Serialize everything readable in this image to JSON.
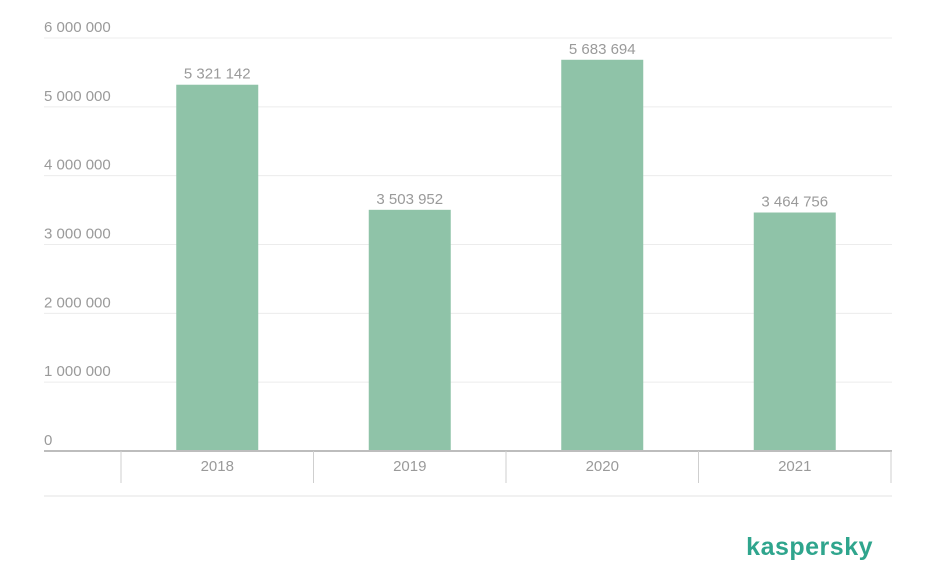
{
  "chart_data": {
    "type": "bar",
    "categories": [
      "2018",
      "2019",
      "2020",
      "2021"
    ],
    "values": [
      5321142,
      3503952,
      5683694,
      3464756
    ],
    "value_labels": [
      "5 321 142",
      "3 503 952",
      "5 683 694",
      "3 464 756"
    ],
    "color": "#8fc3a8",
    "ylim": [
      0,
      6000000
    ],
    "yticks": [
      0,
      {
        "value": 1000000,
        "label": "1 000 000"
      },
      {
        "value": 2000000,
        "label": "2 000 000"
      },
      {
        "value": 3000000,
        "label": "3 000 000"
      },
      {
        "value": 4000000,
        "label": "4 000 000"
      },
      {
        "value": 5000000,
        "label": "5 000 000"
      },
      {
        "value": 6000000,
        "label": "6 000 000"
      }
    ],
    "grid": true
  },
  "logo": "kaspersky"
}
